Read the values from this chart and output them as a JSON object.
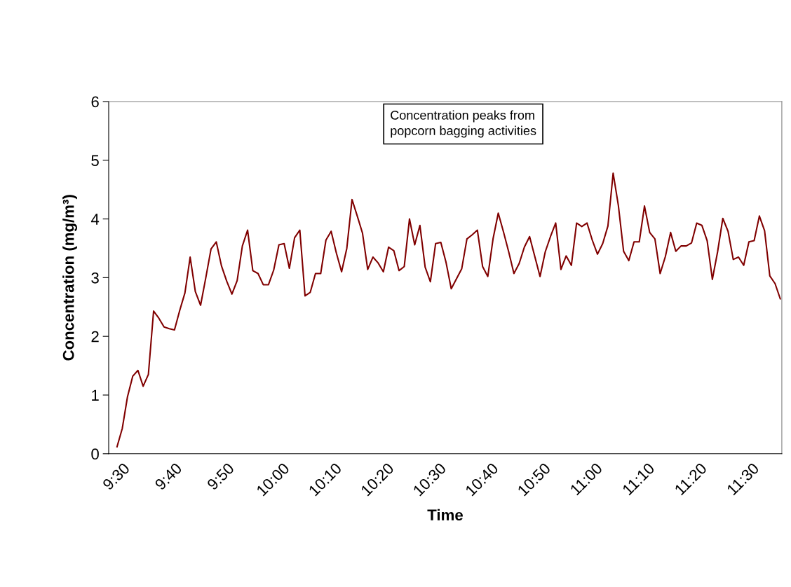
{
  "chart_data": {
    "type": "line",
    "xlabel": "Time",
    "ylabel": "Concentration (mg/m³)",
    "categories": [
      "9:30",
      null,
      null,
      null,
      null,
      null,
      null,
      null,
      null,
      null,
      "9:40",
      null,
      null,
      null,
      null,
      null,
      null,
      null,
      null,
      null,
      "9:50",
      null,
      null,
      null,
      null,
      null,
      null,
      null,
      null,
      null,
      "10:00",
      null,
      null,
      null,
      null,
      null,
      null,
      null,
      null,
      null,
      "10:10",
      null,
      null,
      null,
      null,
      null,
      null,
      null,
      null,
      null,
      "10:20",
      null,
      null,
      null,
      null,
      null,
      null,
      null,
      null,
      null,
      "10:30",
      null,
      null,
      null,
      null,
      null,
      null,
      null,
      null,
      null,
      "10:40",
      null,
      null,
      null,
      null,
      null,
      null,
      null,
      null,
      null,
      "10:50",
      null,
      null,
      null,
      null,
      null,
      null,
      null,
      null,
      null,
      "11:00",
      null,
      null,
      null,
      null,
      null,
      null,
      null,
      null,
      null,
      "11:10",
      null,
      null,
      null,
      null,
      null,
      null,
      null,
      null,
      null,
      "11:20",
      null,
      null,
      null,
      null,
      null,
      null,
      null,
      null,
      null,
      "11:30",
      null,
      null,
      null,
      null,
      null,
      null,
      null
    ],
    "series": [
      {
        "color": "#800000",
        "values": [
          0.12,
          0.43,
          0.97,
          1.32,
          1.42,
          1.15,
          1.35,
          2.43,
          2.31,
          2.16,
          2.13,
          2.11,
          2.44,
          2.74,
          3.35,
          2.76,
          2.53,
          3.0,
          3.49,
          3.61,
          3.2,
          2.94,
          2.72,
          2.95,
          3.54,
          3.81,
          3.12,
          3.07,
          2.88,
          2.88,
          3.13,
          3.56,
          3.58,
          3.16,
          3.68,
          3.81,
          2.69,
          2.75,
          3.07,
          3.07,
          3.64,
          3.79,
          3.42,
          3.1,
          3.5,
          4.33,
          4.05,
          3.76,
          3.14,
          3.35,
          3.25,
          3.1,
          3.52,
          3.46,
          3.12,
          3.19,
          4.0,
          3.56,
          3.89,
          3.18,
          2.93,
          3.58,
          3.6,
          3.26,
          2.81,
          2.98,
          3.15,
          3.66,
          3.73,
          3.81,
          3.19,
          3.02,
          3.66,
          4.1,
          3.78,
          3.44,
          3.07,
          3.24,
          3.52,
          3.7,
          3.36,
          3.02,
          3.44,
          3.7,
          3.93,
          3.14,
          3.37,
          3.21,
          3.93,
          3.87,
          3.93,
          3.64,
          3.4,
          3.58,
          3.88,
          4.78,
          4.23,
          3.45,
          3.29,
          3.61,
          3.61,
          4.22,
          3.77,
          3.66,
          3.07,
          3.36,
          3.77,
          3.45,
          3.54,
          3.54,
          3.59,
          3.93,
          3.89,
          3.63,
          2.97,
          3.44,
          4.01,
          3.79,
          3.31,
          3.35,
          3.21,
          3.61,
          3.63,
          4.05,
          3.8,
          3.03,
          2.9,
          2.64
        ]
      }
    ],
    "ylim": [
      0,
      6
    ],
    "yticks": [
      0,
      1,
      2,
      3,
      4,
      5,
      6
    ],
    "grid": false,
    "legend": false,
    "marker": "none",
    "line_style": "solid",
    "annotations": [
      "Concentration peaks from\npopcorn bagging activities"
    ]
  }
}
